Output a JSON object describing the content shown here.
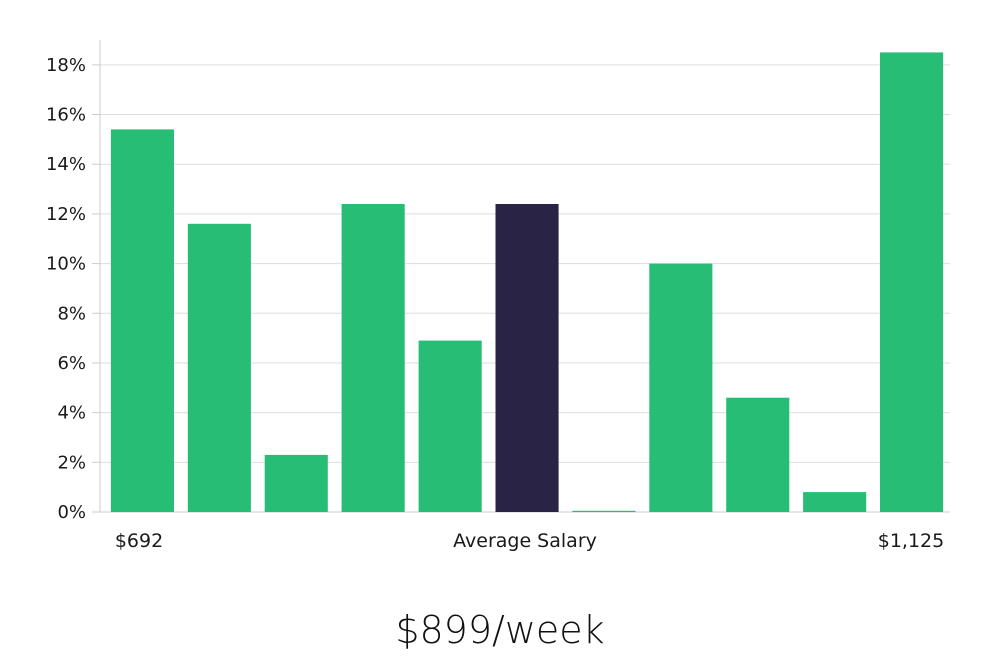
{
  "chart_data": {
    "type": "bar",
    "values": [
      15.4,
      11.6,
      2.3,
      12.4,
      6.9,
      12.4,
      0.05,
      10.0,
      4.6,
      0.8,
      18.5
    ],
    "highlight_index": 5,
    "ylim": [
      0,
      19
    ],
    "yticks": [
      0,
      2,
      4,
      6,
      8,
      10,
      12,
      14,
      16,
      18
    ],
    "ytick_suffix": "%",
    "x_labels": {
      "left": "$692",
      "center": "Average Salary",
      "right": "$1,125"
    },
    "grid": true,
    "colors": {
      "bar": "#27bd74",
      "highlight": "#292446",
      "grid": "#dddddd",
      "axis": "#cccccc"
    }
  },
  "caption": "$899/week"
}
